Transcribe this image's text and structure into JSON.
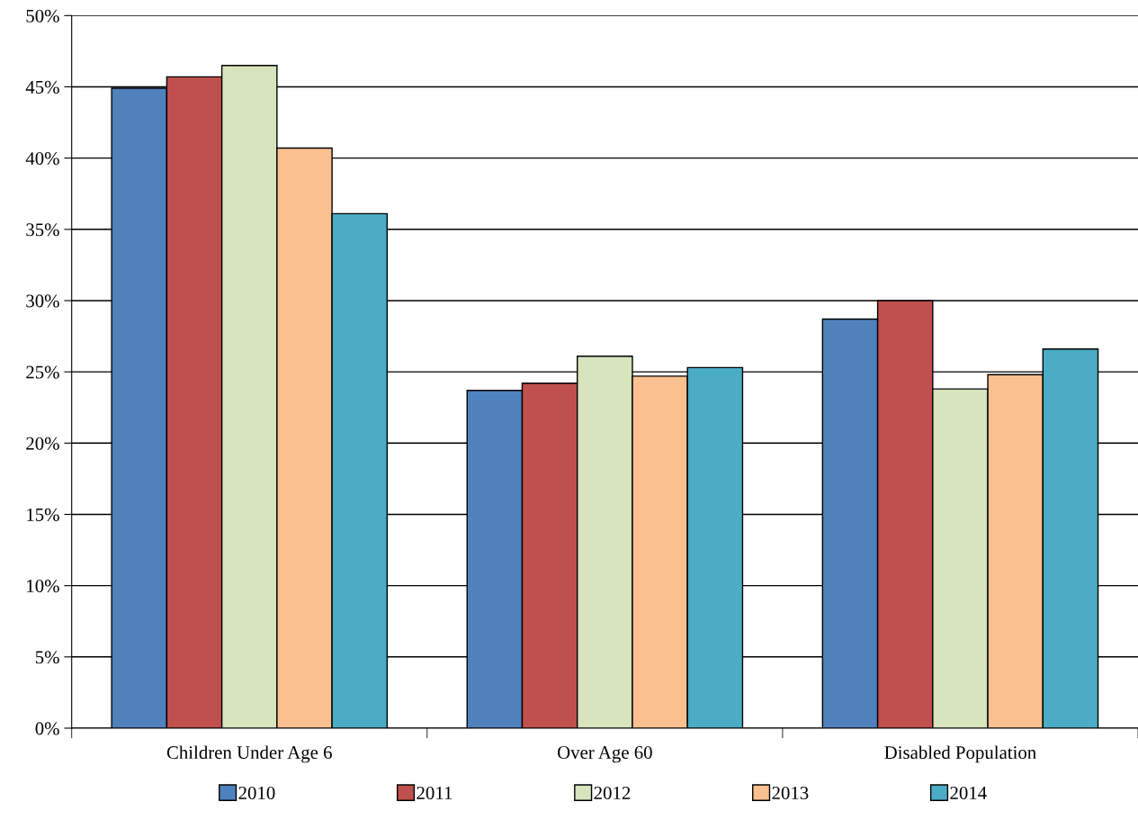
{
  "chart_data": {
    "type": "bar",
    "categories": [
      "Children Under Age 6",
      "Over Age 60",
      "Disabled Population"
    ],
    "series": [
      {
        "name": "2010",
        "color": "#4f81bd",
        "values": [
          44.9,
          23.7,
          28.7
        ]
      },
      {
        "name": "2011",
        "color": "#c0504d",
        "values": [
          45.7,
          24.2,
          30.0
        ]
      },
      {
        "name": "2012",
        "color": "#d7e4bd",
        "values": [
          46.5,
          26.1,
          23.8
        ]
      },
      {
        "name": "2013",
        "color": "#fac090",
        "values": [
          40.7,
          24.7,
          24.8
        ]
      },
      {
        "name": "2014",
        "color": "#4bacc6",
        "values": [
          36.1,
          25.3,
          26.6
        ]
      }
    ],
    "ylim": [
      0,
      50
    ],
    "yticks": [
      {
        "value": 0,
        "label": "0%"
      },
      {
        "value": 5,
        "label": "5%"
      },
      {
        "value": 10,
        "label": "10%"
      },
      {
        "value": 15,
        "label": "15%"
      },
      {
        "value": 20,
        "label": "20%"
      },
      {
        "value": 25,
        "label": "25%"
      },
      {
        "value": 30,
        "label": "30%"
      },
      {
        "value": 35,
        "label": "35%"
      },
      {
        "value": 40,
        "label": "40%"
      },
      {
        "value": 45,
        "label": "45%"
      },
      {
        "value": 50,
        "label": "50%"
      }
    ],
    "grid": "y",
    "legend": "bottom"
  }
}
